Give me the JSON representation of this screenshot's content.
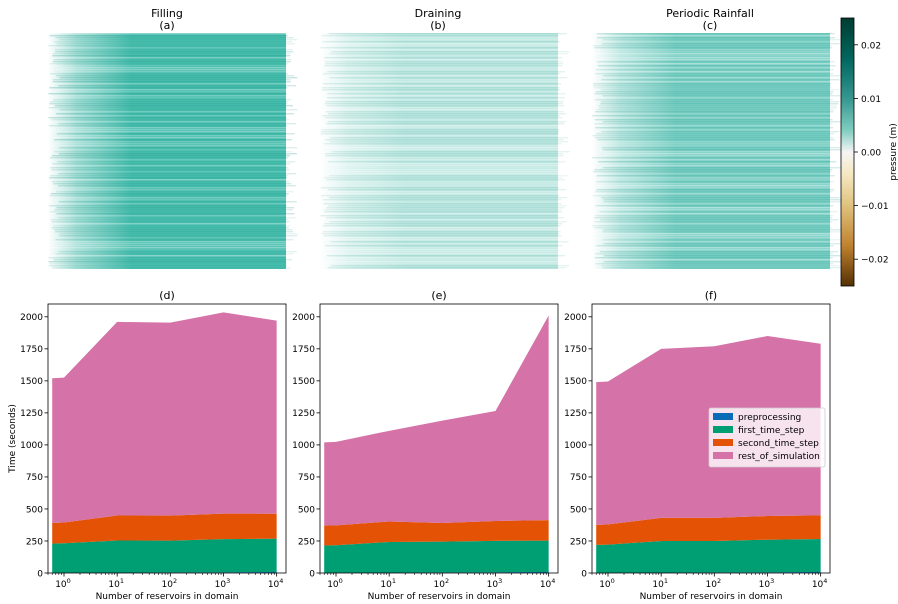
{
  "colors": {
    "preprocessing": "#0a6cb6",
    "first_time_step": "#009e73",
    "second_time_step": "#e35205",
    "rest_of_simulation": "#d572a8",
    "heatmap_teal": "#2bb3a1",
    "heatmap_pale": "#ccefe9"
  },
  "colorbar": {
    "label": "pressure (m)",
    "range": [
      -0.025,
      0.025
    ],
    "ticks": [
      "0.02",
      "0.01",
      "0.00",
      "−0.01",
      "−0.02"
    ],
    "tick_values": [
      0.02,
      0.01,
      0.0,
      -0.01,
      -0.02
    ],
    "colormap": "diverging brown-white-teal (BrBG)"
  },
  "heatmaps": [
    {
      "title": "Filling",
      "label": "(a)",
      "intensity": 0.85
    },
    {
      "title": "Draining",
      "label": "(b)",
      "intensity": 0.25
    },
    {
      "title": "Periodic Rainfall",
      "label": "(c)",
      "intensity": 0.6
    }
  ],
  "chart_data": [
    {
      "type": "area",
      "label": "(d)",
      "stacked": true,
      "x": [
        0.6,
        1,
        10,
        100,
        1000,
        10000
      ],
      "xscale": "log",
      "xlabel": "Number of reservoirs in domain",
      "ylabel": "Time (seconds)",
      "ylim": [
        0,
        2100
      ],
      "xticks": [
        {
          "base": "10",
          "exp": "0"
        },
        {
          "base": "10",
          "exp": "1"
        },
        {
          "base": "10",
          "exp": "2"
        },
        {
          "base": "10",
          "exp": "3"
        },
        {
          "base": "10",
          "exp": "4"
        }
      ],
      "yticks": [
        "0",
        "250",
        "500",
        "750",
        "1000",
        "1250",
        "1500",
        "1750",
        "2000"
      ],
      "series": [
        {
          "name": "preprocessing",
          "values": [
            2,
            2,
            4,
            5,
            6,
            8
          ]
        },
        {
          "name": "first_time_step",
          "values": [
            228,
            230,
            250,
            248,
            258,
            260
          ]
        },
        {
          "name": "second_time_step",
          "values": [
            160,
            162,
            195,
            195,
            200,
            195
          ]
        },
        {
          "name": "rest_of_simulation",
          "values": [
            1130,
            1131,
            1511,
            1507,
            1571,
            1507
          ]
        }
      ]
    },
    {
      "type": "area",
      "label": "(e)",
      "stacked": true,
      "x": [
        0.6,
        1,
        10,
        100,
        1000,
        10000
      ],
      "xscale": "log",
      "xlabel": "Number of reservoirs in domain",
      "ylabel": "",
      "ylim": [
        0,
        2100
      ],
      "xticks": [
        {
          "base": "10",
          "exp": "0"
        },
        {
          "base": "10",
          "exp": "1"
        },
        {
          "base": "10",
          "exp": "2"
        },
        {
          "base": "10",
          "exp": "3"
        },
        {
          "base": "10",
          "exp": "4"
        }
      ],
      "yticks": [
        "0",
        "250",
        "500",
        "750",
        "1000",
        "1250",
        "1500",
        "1750",
        "2000"
      ],
      "series": [
        {
          "name": "preprocessing",
          "values": [
            2,
            2,
            4,
            5,
            6,
            8
          ]
        },
        {
          "name": "first_time_step",
          "values": [
            213,
            215,
            238,
            240,
            245,
            245
          ]
        },
        {
          "name": "second_time_step",
          "values": [
            155,
            155,
            160,
            145,
            155,
            160
          ]
        },
        {
          "name": "rest_of_simulation",
          "values": [
            650,
            652,
            708,
            800,
            859,
            1597
          ]
        }
      ]
    },
    {
      "type": "area",
      "label": "(f)",
      "stacked": true,
      "x": [
        0.6,
        1,
        10,
        100,
        1000,
        10000
      ],
      "xscale": "log",
      "xlabel": "Number of reservoirs in domain",
      "ylabel": "",
      "ylim": [
        0,
        2100
      ],
      "xticks": [
        {
          "base": "10",
          "exp": "0"
        },
        {
          "base": "10",
          "exp": "1"
        },
        {
          "base": "10",
          "exp": "2"
        },
        {
          "base": "10",
          "exp": "3"
        },
        {
          "base": "10",
          "exp": "4"
        }
      ],
      "yticks": [
        "0",
        "250",
        "500",
        "750",
        "1000",
        "1250",
        "1500",
        "1750",
        "2000"
      ],
      "series": [
        {
          "name": "preprocessing",
          "values": [
            2,
            2,
            4,
            5,
            6,
            8
          ]
        },
        {
          "name": "first_time_step",
          "values": [
            218,
            220,
            246,
            245,
            254,
            257
          ]
        },
        {
          "name": "second_time_step",
          "values": [
            155,
            158,
            180,
            180,
            185,
            185
          ]
        },
        {
          "name": "rest_of_simulation",
          "values": [
            1115,
            1115,
            1320,
            1340,
            1405,
            1340
          ]
        }
      ],
      "legend": {
        "placement": "center-right"
      }
    }
  ]
}
